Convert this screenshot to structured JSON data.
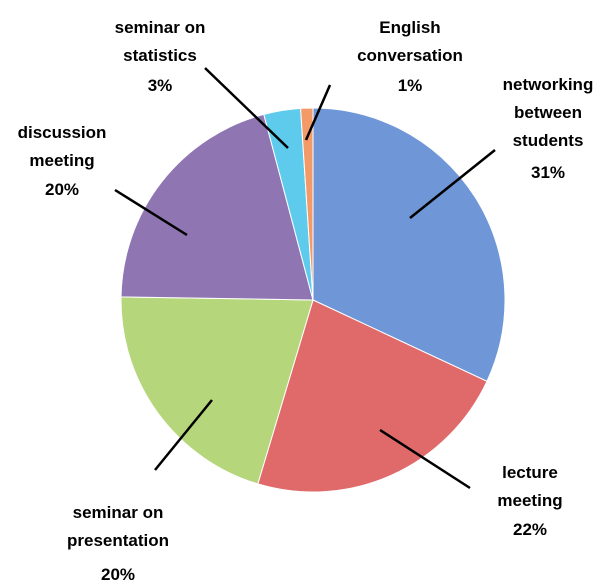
{
  "chart_data": {
    "type": "pie",
    "categories": [
      "networking between students",
      "lecture meeting",
      "seminar on presentation",
      "discussion meeting",
      "seminar on statistics",
      "English conversation"
    ],
    "values": [
      31,
      22,
      20,
      20,
      3,
      1
    ],
    "value_labels": [
      "31%",
      "22%",
      "20%",
      "20%",
      "3%",
      "1%"
    ],
    "colors": [
      "#6f97d8",
      "#e06a6a",
      "#b6d67c",
      "#8f76b2",
      "#5fcbec",
      "#f49a68"
    ]
  }
}
